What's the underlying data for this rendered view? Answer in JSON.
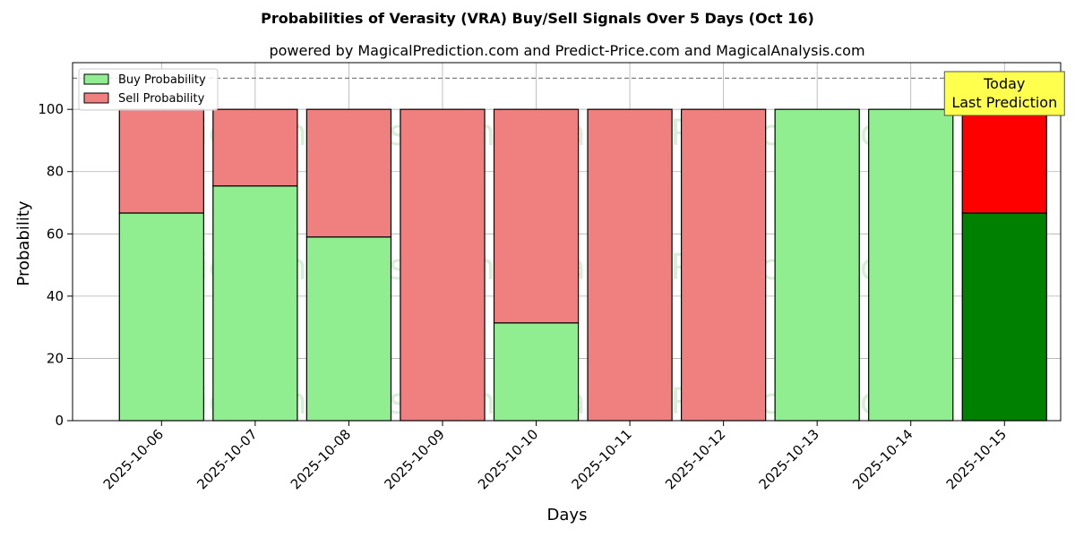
{
  "chart_data": {
    "type": "bar",
    "stacked": true,
    "title": "Probabilities of Verasity (VRA) Buy/Sell Signals Over 5 Days (Oct 16)",
    "subtitle": "powered by MagicalPrediction.com and Predict-Price.com and MagicalAnalysis.com",
    "xlabel": "Days",
    "ylabel": "Probability",
    "ylim": [
      0,
      115
    ],
    "yticks": [
      0,
      20,
      40,
      60,
      80,
      100
    ],
    "grid": true,
    "legend_position": "top-left",
    "reference_line": 110,
    "categories": [
      "2025-10-06",
      "2025-10-07",
      "2025-10-08",
      "2025-10-09",
      "2025-10-10",
      "2025-10-11",
      "2025-10-12",
      "2025-10-13",
      "2025-10-14",
      "2025-10-15"
    ],
    "series": [
      {
        "name": "Buy Probability",
        "color": "#90ee90",
        "highlight_color": "#008000",
        "values": [
          66.7,
          75.4,
          59.0,
          0,
          31.4,
          0,
          0,
          100,
          100,
          66.7
        ]
      },
      {
        "name": "Sell Probability",
        "color": "#f08080",
        "highlight_color": "#ff0000",
        "values": [
          33.3,
          24.6,
          41.0,
          100,
          68.6,
          100,
          100,
          0,
          0,
          33.3
        ]
      }
    ],
    "highlight_index": 9,
    "annotation": {
      "lines": [
        "Today",
        "Last Prediction"
      ],
      "background": "#ffff4d"
    },
    "watermarks": [
      "MagicalAnalysis.com",
      "MagicalPrediction.com"
    ]
  }
}
